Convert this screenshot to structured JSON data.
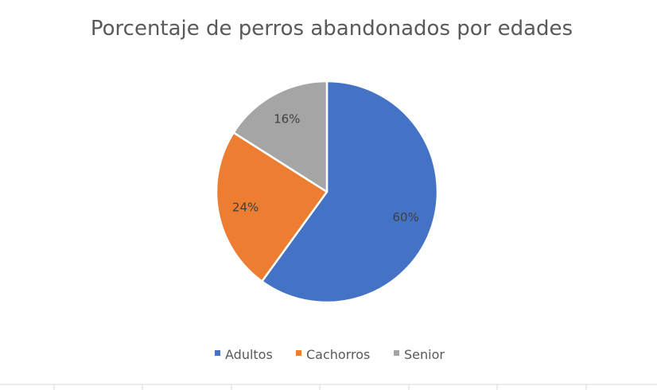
{
  "chart_data": {
    "type": "pie",
    "title": "Porcentaje de perros abandonados por edades",
    "categories": [
      "Adultos",
      "Cachorros",
      "Senior"
    ],
    "values": [
      60,
      24,
      16
    ],
    "data_labels": [
      "60%",
      "24%",
      "16%"
    ],
    "colors": [
      "#4472C4",
      "#ED7D31",
      "#A5A5A5"
    ],
    "legend_position": "bottom",
    "start_angle_deg": 0,
    "direction": "clockwise"
  }
}
